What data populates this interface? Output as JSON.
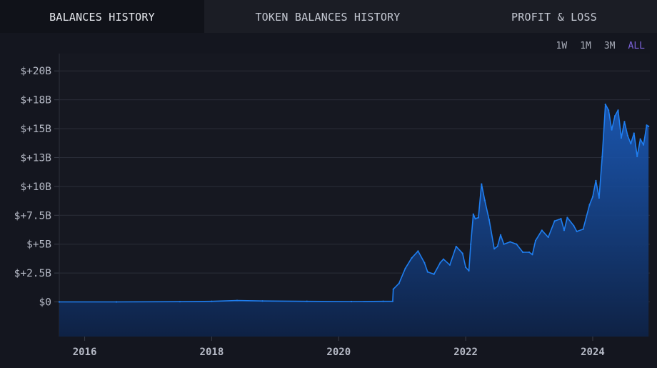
{
  "tabs": [
    {
      "label": "BALANCES HISTORY"
    },
    {
      "label": "TOKEN BALANCES HISTORY"
    },
    {
      "label": "PROFIT & LOSS"
    }
  ],
  "range_buttons": [
    {
      "label": "1W"
    },
    {
      "label": "1M"
    },
    {
      "label": "3M"
    },
    {
      "label": "ALL"
    }
  ],
  "colors": {
    "accent": "#7b63d9",
    "line": "#1f7ef0",
    "background": "#14161f"
  },
  "chart_data": {
    "type": "area",
    "ylim": [
      -3,
      21.5
    ],
    "xlim": [
      2015.6,
      2024.9
    ],
    "y_ticks": [
      {
        "value": 20,
        "label": "$+20B"
      },
      {
        "value": 17.5,
        "label": "$+18B"
      },
      {
        "value": 15,
        "label": "$+15B"
      },
      {
        "value": 12.5,
        "label": "$+13B"
      },
      {
        "value": 10,
        "label": "$+10B"
      },
      {
        "value": 7.5,
        "label": "$+7.5B"
      },
      {
        "value": 5,
        "label": "$+5B"
      },
      {
        "value": 2.5,
        "label": "$+2.5B"
      },
      {
        "value": 0,
        "label": "$0"
      }
    ],
    "x_ticks": [
      {
        "value": 2016,
        "label": "2016"
      },
      {
        "value": 2018,
        "label": "2018"
      },
      {
        "value": 2020,
        "label": "2020"
      },
      {
        "value": 2022,
        "label": "2022"
      },
      {
        "value": 2024,
        "label": "2024"
      }
    ],
    "grid": true,
    "series": [
      {
        "x": [
          2015.6,
          2016.5,
          2017.5,
          2018.0,
          2018.4,
          2018.8,
          2019.5,
          2020.2,
          2020.7,
          2020.85,
          2020.86,
          2020.95,
          2021.05,
          2021.15,
          2021.25,
          2021.35,
          2021.4,
          2021.5,
          2021.6,
          2021.65,
          2021.75,
          2021.85,
          2021.95,
          2022.0,
          2022.05,
          2022.08,
          2022.12,
          2022.15,
          2022.2,
          2022.25,
          2022.3,
          2022.37,
          2022.45,
          2022.5,
          2022.55,
          2022.6,
          2022.7,
          2022.8,
          2022.9,
          2023.0,
          2023.05,
          2023.1,
          2023.2,
          2023.3,
          2023.4,
          2023.5,
          2023.55,
          2023.6,
          2023.7,
          2023.75,
          2023.85,
          2023.95,
          2024.0,
          2024.05,
          2024.1,
          2024.15,
          2024.2,
          2024.25,
          2024.3,
          2024.35,
          2024.4,
          2024.45,
          2024.5,
          2024.55,
          2024.6,
          2024.65,
          2024.7,
          2024.75,
          2024.8,
          2024.85,
          2024.88
        ],
        "y": [
          0.0,
          0.0,
          0.02,
          0.05,
          0.12,
          0.08,
          0.05,
          0.03,
          0.05,
          0.05,
          1.1,
          1.6,
          2.9,
          3.8,
          4.4,
          3.4,
          2.6,
          2.4,
          3.4,
          3.7,
          3.2,
          4.8,
          4.2,
          3.0,
          2.7,
          5.0,
          7.6,
          7.2,
          7.3,
          10.2,
          8.8,
          7.1,
          4.6,
          4.8,
          5.8,
          5.0,
          5.2,
          5.0,
          4.3,
          4.3,
          4.1,
          5.3,
          6.2,
          5.6,
          7.0,
          7.2,
          6.2,
          7.3,
          6.6,
          6.1,
          6.3,
          8.4,
          9.1,
          10.5,
          9.0,
          12.6,
          17.1,
          16.6,
          14.9,
          16.1,
          16.6,
          14.2,
          15.6,
          14.4,
          13.7,
          14.6,
          12.6,
          14.1,
          13.6,
          15.3,
          15.2
        ]
      }
    ]
  }
}
